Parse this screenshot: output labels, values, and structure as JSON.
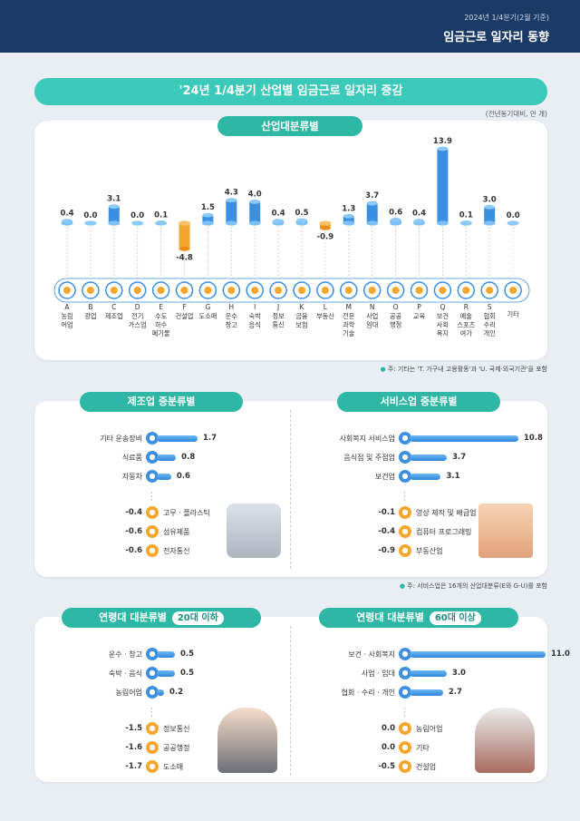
{
  "header": {
    "sub": "2024년 1/4분기(2월 기준)",
    "title": "임금근로 일자리 동향"
  },
  "main_title": "'24년 1/4분기 산업별 임금근로 일자리 증감",
  "unit": "(전년동기대비, 만 개)",
  "industry_section": {
    "title": "산업대분류별",
    "note": "주: 기타는 'T. 가구내 고용활동'과 'U. 국제·외국기관'을 포함",
    "icons": [
      "tractor-icon",
      "helmet-icon",
      "gear-icon",
      "lightning-icon",
      "water-icon",
      "crane-icon",
      "basket-icon",
      "truck-icon",
      "dining-icon",
      "document-icon",
      "bank-icon",
      "building-icon",
      "cog-book-icon",
      "people-icon",
      "scroll-icon",
      "graduation-icon",
      "health-icon",
      "art-icon",
      "group-icon",
      "phone-icon"
    ]
  },
  "chart_data": [
    {
      "type": "bar",
      "title": "산업대분류별",
      "codes": [
        "A",
        "B",
        "C",
        "D",
        "E",
        "F",
        "G",
        "H",
        "I",
        "J",
        "K",
        "L",
        "M",
        "N",
        "O",
        "P",
        "Q",
        "R",
        "S",
        ""
      ],
      "categories": [
        "농림어업",
        "광업",
        "제조업",
        "전기가스업",
        "수도하수폐기물",
        "건설업",
        "도소매",
        "운수창고",
        "숙박음식",
        "정보통신",
        "금융보험",
        "부동산",
        "전문과학기술",
        "사업임대",
        "공공행정",
        "교육",
        "보건사회복지",
        "예술스포츠여가",
        "협회수리개인",
        "기타"
      ],
      "label_lines": [
        [
          "농림",
          "어업"
        ],
        [
          "광업"
        ],
        [
          "제조업"
        ],
        [
          "전기",
          "가스업"
        ],
        [
          "수도",
          "하수",
          "폐기물"
        ],
        [
          "건설업"
        ],
        [
          "도소매"
        ],
        [
          "운수",
          "창고"
        ],
        [
          "숙박",
          "음식"
        ],
        [
          "정보",
          "통신"
        ],
        [
          "금융",
          "보험"
        ],
        [
          "부동산"
        ],
        [
          "전문",
          "과학",
          "기술"
        ],
        [
          "사업",
          "임대"
        ],
        [
          "공공",
          "행정"
        ],
        [
          "교육"
        ],
        [
          "보건",
          "사회",
          "복지"
        ],
        [
          "예술",
          "스포츠",
          "여가"
        ],
        [
          "협회",
          "수리",
          "개인"
        ],
        [
          "기타"
        ]
      ],
      "value_labels": [
        "0.4",
        "0.0",
        "3.1",
        "0.0",
        "0.1",
        "-4.8",
        "1.5",
        "4.3",
        "4.0",
        "0.4",
        "0.5",
        "-0.9",
        "1.3",
        "3.7",
        "0.6",
        "0.4",
        "13.9",
        "0.1",
        "3.0",
        "0.0"
      ],
      "values": [
        0.4,
        0.0,
        3.1,
        0.0,
        0.1,
        -4.8,
        1.5,
        4.3,
        4.0,
        0.4,
        0.5,
        -0.9,
        1.3,
        3.7,
        0.6,
        0.4,
        13.9,
        0.1,
        3.0,
        0.0
      ]
    },
    {
      "type": "bar",
      "title": "제조업 중분류별",
      "top": [
        {
          "label": "기타 운송장비",
          "value": 1.7,
          "icon": "ship-icon"
        },
        {
          "label": "식료품",
          "value": 0.8,
          "icon": "food-icon"
        },
        {
          "label": "자동차",
          "value": 0.6,
          "icon": "car-icon"
        }
      ],
      "bottom": [
        {
          "label": "고무 · 플라스틱",
          "value": -0.4,
          "icon": "tire-icon"
        },
        {
          "label": "섬유제품",
          "value": -0.6,
          "icon": "textile-icon"
        },
        {
          "label": "전자통신",
          "value": -0.6,
          "icon": "electronics-icon"
        }
      ]
    },
    {
      "type": "bar",
      "title": "서비스업 중분류별",
      "top": [
        {
          "label": "사회복지 서비스업",
          "value": 10.8,
          "icon": "welfare-icon"
        },
        {
          "label": "음식점 및 주점업",
          "value": 3.7,
          "icon": "restaurant-icon"
        },
        {
          "label": "보건업",
          "value": 3.1,
          "icon": "cross-icon"
        }
      ],
      "bottom": [
        {
          "label": "영상 제작 및 배급업",
          "value": -0.1,
          "icon": "film-icon"
        },
        {
          "label": "컴퓨터 프로그래밍",
          "value": -0.4,
          "icon": "computer-icon"
        },
        {
          "label": "부동산업",
          "value": -0.9,
          "icon": "house-icon"
        }
      ]
    },
    {
      "type": "bar",
      "title": "연령대 대분류별",
      "tag": "20대 이하",
      "top": [
        {
          "label": "운수 · 창고",
          "value": 0.5,
          "icon": "truck-icon"
        },
        {
          "label": "숙박 · 음식",
          "value": 0.5,
          "icon": "dining-icon"
        },
        {
          "label": "농림어업",
          "value": 0.2,
          "icon": "tractor-icon"
        }
      ],
      "bottom": [
        {
          "label": "정보통신",
          "value": -1.5,
          "icon": "document-icon"
        },
        {
          "label": "공공행정",
          "value": -1.6,
          "icon": "scroll-icon"
        },
        {
          "label": "도소매",
          "value": -1.7,
          "icon": "basket-icon"
        }
      ]
    },
    {
      "type": "bar",
      "title": "연령대 대분류별",
      "tag": "60대 이상",
      "top": [
        {
          "label": "보건 · 사회복지",
          "value": 11.0,
          "icon": "health-icon"
        },
        {
          "label": "사업 · 임대",
          "value": 3.0,
          "icon": "people-icon"
        },
        {
          "label": "협회 · 수리 · 개인",
          "value": 2.7,
          "icon": "group-icon"
        }
      ],
      "bottom": [
        {
          "label": "농림어업",
          "value": 0.0,
          "icon": "tractor-icon"
        },
        {
          "label": "기타",
          "value": 0.0,
          "icon": "phone-icon"
        },
        {
          "label": "건설업",
          "value": -0.5,
          "icon": "crane-icon"
        }
      ]
    }
  ],
  "service_note": "주: 서비스업은 16개의 산업대분류(E와 G-U)를 포함"
}
